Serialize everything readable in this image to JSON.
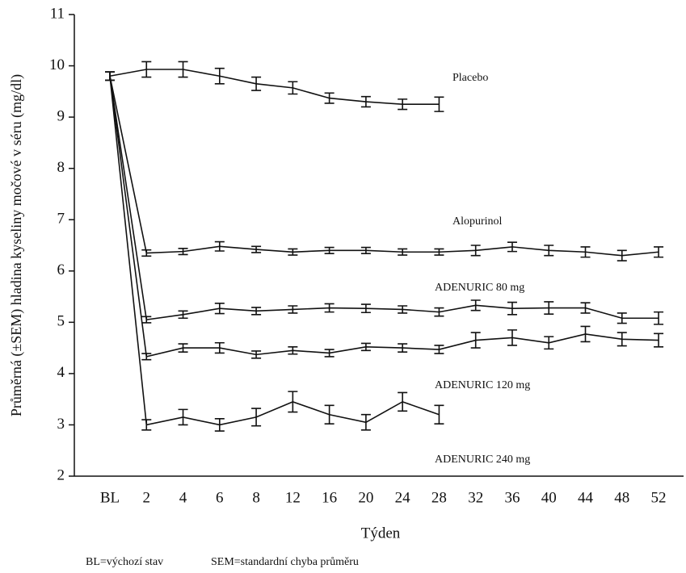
{
  "chart_data": {
    "type": "line",
    "ylabel": "Průměrná (±SEM) hladina kyseliny močové v séru (mg/dl)",
    "xlabel": "Týden",
    "footnotes": [
      "BL=výchozí stav",
      "SEM=standardní chyba průměru"
    ],
    "categories": [
      "BL",
      "2",
      "4",
      "6",
      "8",
      "12",
      "16",
      "20",
      "24",
      "28",
      "32",
      "36",
      "40",
      "44",
      "48",
      "52"
    ],
    "ylim": [
      2,
      11
    ],
    "yticks": [
      2,
      3,
      4,
      5,
      6,
      7,
      8,
      9,
      10,
      11
    ],
    "series": [
      {
        "name": "Placebo",
        "color": "#111111",
        "values": [
          9.8,
          9.93,
          9.93,
          9.8,
          9.65,
          9.57,
          9.37,
          9.3,
          9.25,
          9.25,
          null,
          null,
          null,
          null,
          null,
          null
        ],
        "errors": [
          0.08,
          0.15,
          0.15,
          0.15,
          0.13,
          0.12,
          0.1,
          0.1,
          0.1,
          0.14,
          null,
          null,
          null,
          null,
          null,
          null
        ]
      },
      {
        "name": "Alopurinol",
        "color": "#111111",
        "values": [
          9.8,
          6.35,
          6.38,
          6.48,
          6.42,
          6.37,
          6.4,
          6.4,
          6.37,
          6.37,
          6.4,
          6.47,
          6.4,
          6.37,
          6.3,
          6.37
        ],
        "errors": [
          0.08,
          0.06,
          0.06,
          0.09,
          0.06,
          0.06,
          0.06,
          0.06,
          0.06,
          0.06,
          0.1,
          0.09,
          0.1,
          0.1,
          0.1,
          0.1
        ]
      },
      {
        "name": "ADENURIC 80 mg",
        "color": "#111111",
        "values": [
          9.8,
          5.05,
          5.15,
          5.27,
          5.22,
          5.25,
          5.28,
          5.27,
          5.25,
          5.2,
          5.33,
          5.27,
          5.28,
          5.28,
          5.08,
          5.08
        ],
        "errors": [
          0.08,
          0.06,
          0.07,
          0.1,
          0.07,
          0.07,
          0.08,
          0.08,
          0.07,
          0.08,
          0.1,
          0.12,
          0.12,
          0.1,
          0.1,
          0.12
        ]
      },
      {
        "name": "ADENURIC  120 mg",
        "color": "#111111",
        "values": [
          9.8,
          4.33,
          4.5,
          4.5,
          4.37,
          4.45,
          4.4,
          4.52,
          4.5,
          4.47,
          4.65,
          4.7,
          4.6,
          4.77,
          4.67,
          4.65
        ],
        "errors": [
          0.08,
          0.06,
          0.08,
          0.1,
          0.07,
          0.07,
          0.07,
          0.07,
          0.08,
          0.08,
          0.15,
          0.15,
          0.12,
          0.15,
          0.13,
          0.13
        ]
      },
      {
        "name": "ADENURIC  240 mg",
        "color": "#111111",
        "values": [
          9.8,
          3.0,
          3.15,
          3.0,
          3.15,
          3.45,
          3.2,
          3.05,
          3.45,
          3.2,
          null,
          null,
          null,
          null,
          null,
          null
        ],
        "errors": [
          0.08,
          0.1,
          0.15,
          0.12,
          0.17,
          0.2,
          0.18,
          0.15,
          0.18,
          0.18,
          null,
          null,
          null,
          null,
          null,
          null
        ]
      }
    ]
  }
}
